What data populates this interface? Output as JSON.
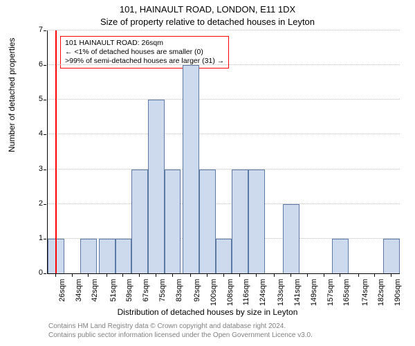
{
  "chart": {
    "type": "histogram",
    "suptitle": "101, HAINAULT ROAD, LONDON, E11 1DX",
    "title": "Size of property relative to detached houses in Leyton",
    "xlabel": "Distribution of detached houses by size in Leyton",
    "ylabel": "Number of detached properties",
    "background_color": "#ffffff",
    "grid_color": "#bfbfbf",
    "grid_style": "dotted",
    "bar_fill": "#cdd9ec",
    "bar_edge": "#5b7aa3",
    "refline_color": "#ff0000",
    "refline_x": 26,
    "annotation_border": "#ff0000",
    "annotation_lines": [
      "101 HAINAULT ROAD: 26sqm",
      "← <1% of detached houses are smaller (0)",
      ">99% of semi-detached houses are larger (31) →"
    ],
    "title_fontsize": 13,
    "label_fontsize": 12,
    "tick_fontsize": 11,
    "annotation_fontsize": 10.5,
    "footer_fontsize": 10,
    "footer_color": "#808080",
    "x_min": 22,
    "x_max": 194,
    "x_ticks": [
      26,
      34,
      42,
      51,
      59,
      67,
      75,
      83,
      92,
      100,
      108,
      116,
      124,
      133,
      141,
      149,
      157,
      165,
      174,
      182,
      190
    ],
    "x_tick_suffix": "sqm",
    "y_min": 0,
    "y_max": 7,
    "y_ticks": [
      0,
      1,
      2,
      3,
      4,
      5,
      6,
      7
    ],
    "bar_width_units": 8,
    "bars": [
      {
        "x": 26,
        "h": 1
      },
      {
        "x": 34,
        "h": 0
      },
      {
        "x": 42,
        "h": 1
      },
      {
        "x": 51,
        "h": 1
      },
      {
        "x": 59,
        "h": 1
      },
      {
        "x": 67,
        "h": 3
      },
      {
        "x": 75,
        "h": 5
      },
      {
        "x": 83,
        "h": 3
      },
      {
        "x": 92,
        "h": 6
      },
      {
        "x": 100,
        "h": 3
      },
      {
        "x": 108,
        "h": 1
      },
      {
        "x": 116,
        "h": 3
      },
      {
        "x": 124,
        "h": 3
      },
      {
        "x": 133,
        "h": 0
      },
      {
        "x": 141,
        "h": 2
      },
      {
        "x": 149,
        "h": 0
      },
      {
        "x": 157,
        "h": 0
      },
      {
        "x": 165,
        "h": 1
      },
      {
        "x": 174,
        "h": 0
      },
      {
        "x": 182,
        "h": 0
      },
      {
        "x": 190,
        "h": 1
      }
    ],
    "footer1": "Contains HM Land Registry data © Crown copyright and database right 2024.",
    "footer2": "Contains public sector information licensed under the Open Government Licence v3.0."
  }
}
